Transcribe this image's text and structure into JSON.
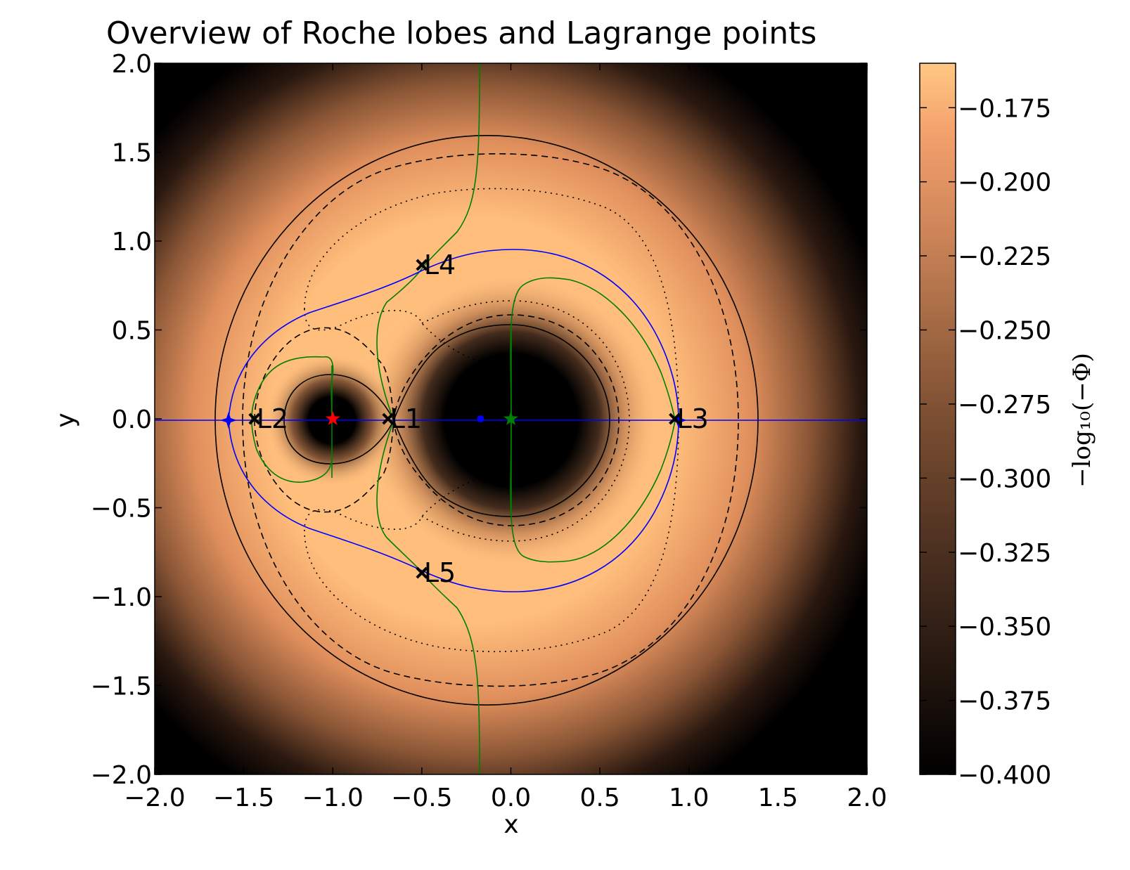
{
  "chart_data": {
    "type": "heatmap",
    "title": "Overview of Roche lobes and Lagrange points",
    "xlabel": "x",
    "ylabel": "y",
    "xlim": [
      -2.0,
      2.0
    ],
    "ylim": [
      -2.0,
      2.0
    ],
    "x_ticks": [
      "−2.0",
      "−1.5",
      "−1.0",
      "−0.5",
      "0.0",
      "0.5",
      "1.0",
      "1.5",
      "2.0"
    ],
    "y_ticks": [
      "2.0",
      "1.5",
      "1.0",
      "0.5",
      "0.0",
      "−0.5",
      "−1.0",
      "−1.5",
      "−2.0"
    ],
    "colorbar": {
      "label": "−log₁₀(−Φ)",
      "range": [
        -0.4,
        -0.16
      ],
      "ticks": [
        "−0.175",
        "−0.200",
        "−0.225",
        "−0.250",
        "−0.275",
        "−0.300",
        "−0.325",
        "−0.350",
        "−0.375",
        "−0.400"
      ],
      "tick_values": [
        -0.175,
        -0.2,
        -0.225,
        -0.25,
        -0.275,
        -0.3,
        -0.325,
        -0.35,
        -0.375,
        -0.4
      ],
      "colormap": "copper"
    },
    "lagrange_points": [
      {
        "name": "L1",
        "x": -0.69,
        "y": 0.0
      },
      {
        "name": "L2",
        "x": -1.44,
        "y": 0.0
      },
      {
        "name": "L3",
        "x": 0.92,
        "y": 0.0
      },
      {
        "name": "L4",
        "x": -0.5,
        "y": 0.866
      },
      {
        "name": "L5",
        "x": -0.5,
        "y": -0.866
      }
    ],
    "bodies": [
      {
        "marker": "star",
        "x": -1.0,
        "y": 0.0,
        "color": "#ff0000"
      },
      {
        "marker": "star",
        "x": 0.0,
        "y": 0.0,
        "color": "#007f00"
      },
      {
        "marker": "dot",
        "x": -0.17,
        "y": 0.0,
        "color": "#0000ff"
      }
    ],
    "colors": {
      "zero_contour_x": "#007f00",
      "zero_contour_y": "#0000ff",
      "potential_contours": "#000000"
    }
  }
}
